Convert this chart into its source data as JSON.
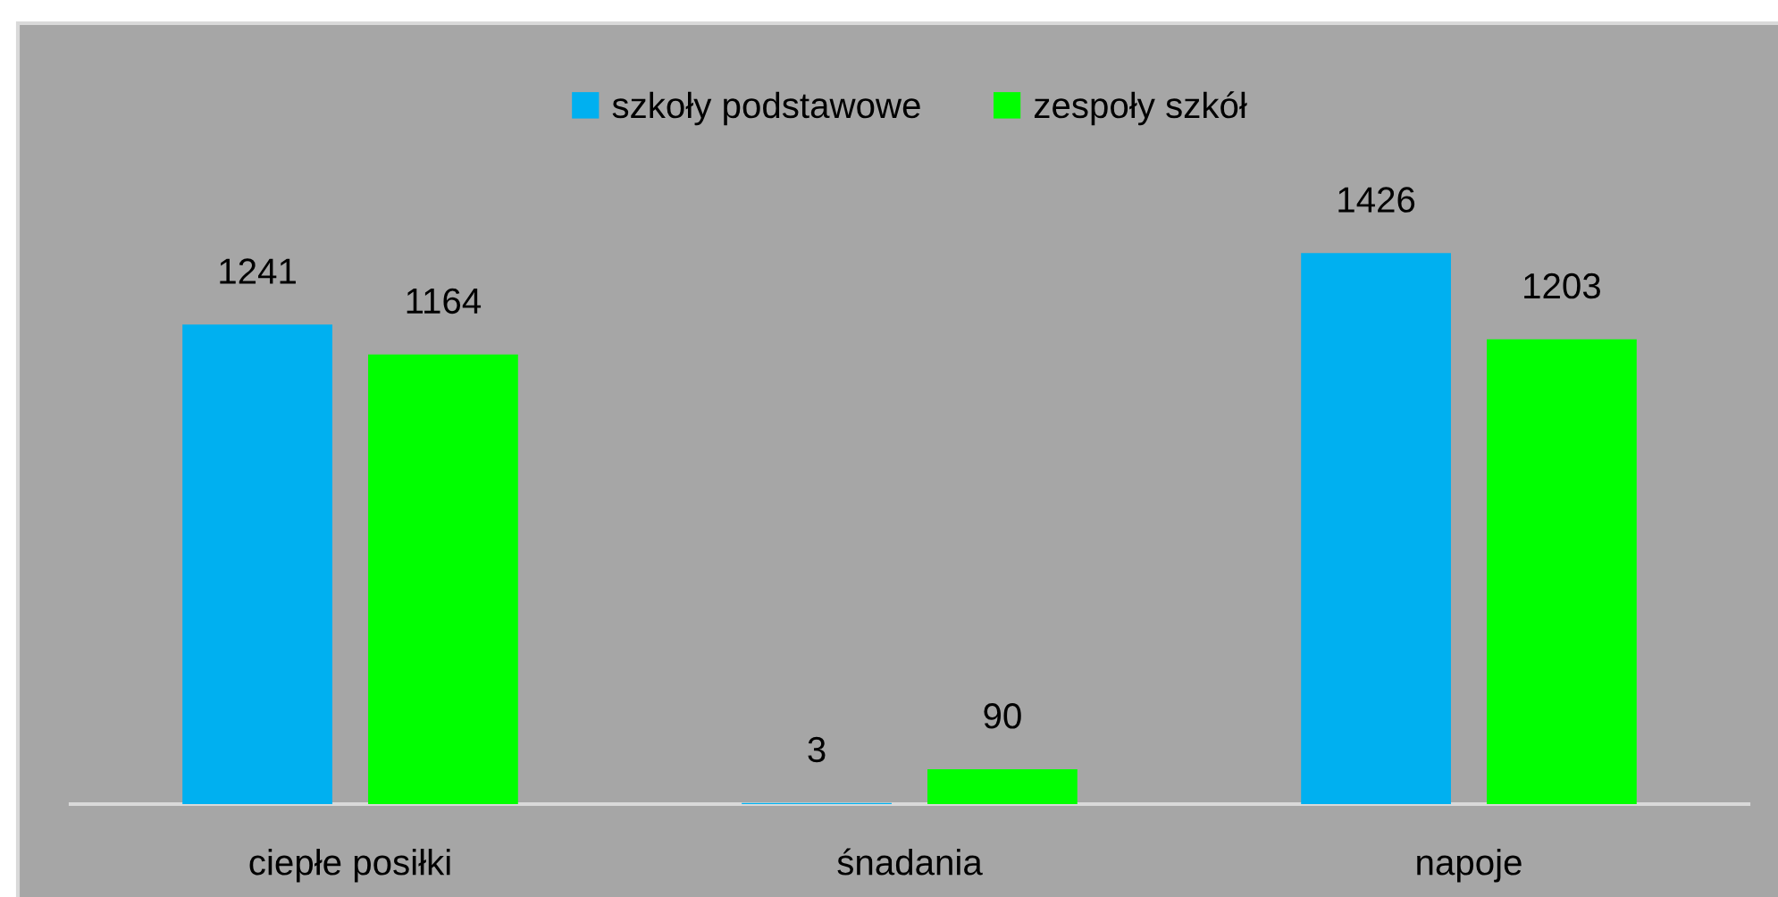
{
  "chart_data": {
    "type": "bar",
    "categories": [
      "ciepłe posiłki",
      "śnadania",
      "napoje"
    ],
    "series": [
      {
        "name": "szkoły podstawowe",
        "color": "#00b0f0",
        "values": [
          1241,
          3,
          1426
        ]
      },
      {
        "name": "zespoły szkół",
        "color": "#00ff00",
        "values": [
          1164,
          90,
          1203
        ]
      }
    ],
    "data_labels": true,
    "legend": "top",
    "grid": false,
    "tick_labels": "x"
  }
}
